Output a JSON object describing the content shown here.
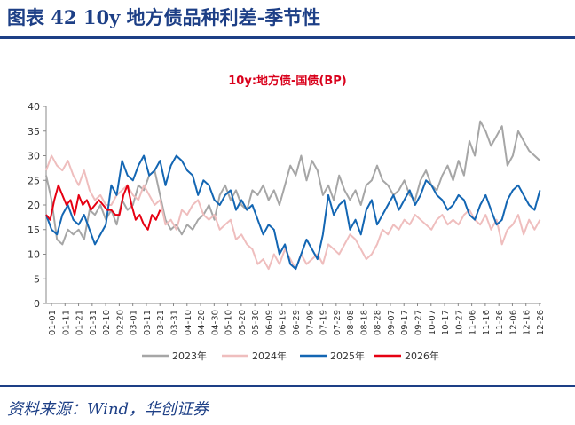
{
  "figure": {
    "title": "图表 42 10y 地方债品种利差-季节性",
    "source": "资料来源：Wind，华创证券"
  },
  "chart_data": {
    "type": "line",
    "title": "10y:地方债-国债(BP)",
    "ylim": [
      0,
      40
    ],
    "yticks": [
      0,
      5,
      10,
      15,
      20,
      25,
      30,
      35,
      40
    ],
    "x_tick_labels": [
      "01-01",
      "01-11",
      "01-21",
      "01-31",
      "02-10",
      "02-20",
      "03-01",
      "03-11",
      "03-21",
      "03-31",
      "04-10",
      "04-20",
      "04-30",
      "05-10",
      "05-20",
      "05-30",
      "06-09",
      "06-19",
      "06-29",
      "07-09",
      "07-19",
      "07-29",
      "08-08",
      "08-18",
      "08-28",
      "09-07",
      "09-17",
      "09-27",
      "10-07",
      "10-17",
      "10-27",
      "11-06",
      "11-16",
      "11-26",
      "12-06",
      "12-16",
      "12-26"
    ],
    "grid": false,
    "legend_position": "bottom",
    "series": [
      {
        "name": "2023年",
        "color": "#a6a6a6",
        "x": [
          0,
          4,
          8,
          12,
          16,
          20,
          24,
          28,
          32,
          36,
          40,
          44,
          48,
          52,
          56,
          60,
          64,
          68,
          72,
          76,
          80,
          84,
          88,
          92,
          96,
          100,
          104,
          108,
          112,
          116,
          120,
          124,
          128,
          132,
          136,
          140,
          144,
          148,
          152,
          156,
          160,
          164,
          168,
          172,
          176,
          180,
          184,
          188,
          192,
          196,
          200,
          204,
          208,
          212,
          216,
          220,
          224,
          228,
          232,
          236,
          240,
          244,
          248,
          252,
          256,
          260,
          264,
          268,
          272,
          276,
          280,
          284,
          288,
          292,
          296,
          300,
          304,
          308,
          312,
          316,
          320,
          324,
          328,
          332,
          336,
          340,
          344,
          348,
          352,
          356,
          360,
          364
        ],
        "values": [
          26,
          21,
          13,
          12,
          15,
          14,
          15,
          13,
          19,
          18,
          20,
          17,
          19,
          16,
          21,
          19,
          20,
          24,
          23,
          26,
          27,
          22,
          17,
          15,
          16,
          14,
          16,
          15,
          17,
          18,
          20,
          17,
          22,
          24,
          21,
          23,
          20,
          19,
          23,
          22,
          24,
          21,
          23,
          20,
          24,
          28,
          26,
          30,
          25,
          29,
          27,
          22,
          24,
          21,
          26,
          23,
          21,
          23,
          20,
          24,
          25,
          28,
          25,
          24,
          22,
          23,
          25,
          22,
          21,
          25,
          27,
          24,
          23,
          26,
          28,
          25,
          29,
          26,
          33,
          30,
          37,
          35,
          32,
          34,
          36,
          28,
          30,
          35,
          33,
          31,
          30,
          29
        ]
      },
      {
        "name": "2024年",
        "color": "#efbebe",
        "x": [
          0,
          4,
          8,
          12,
          16,
          20,
          24,
          28,
          32,
          36,
          40,
          44,
          48,
          52,
          56,
          60,
          64,
          68,
          72,
          76,
          80,
          84,
          88,
          92,
          96,
          100,
          104,
          108,
          112,
          116,
          120,
          124,
          128,
          132,
          136,
          140,
          144,
          148,
          152,
          156,
          160,
          164,
          168,
          172,
          176,
          180,
          184,
          188,
          192,
          196,
          200,
          204,
          208,
          212,
          216,
          220,
          224,
          228,
          232,
          236,
          240,
          244,
          248,
          252,
          256,
          260,
          264,
          268,
          272,
          276,
          280,
          284,
          288,
          292,
          296,
          300,
          304,
          308,
          312,
          316,
          320,
          324,
          328,
          332,
          336,
          340,
          344,
          348,
          352,
          356,
          360,
          364
        ],
        "values": [
          27,
          30,
          28,
          27,
          29,
          26,
          24,
          27,
          23,
          21,
          22,
          20,
          20,
          22,
          23,
          24,
          22,
          21,
          24,
          22,
          20,
          21,
          16,
          17,
          15,
          19,
          18,
          20,
          21,
          18,
          17,
          18,
          15,
          16,
          17,
          13,
          14,
          12,
          11,
          8,
          9,
          7,
          10,
          8,
          11,
          9,
          7,
          10,
          8,
          9,
          10,
          8,
          12,
          11,
          10,
          12,
          14,
          13,
          11,
          9,
          10,
          12,
          15,
          14,
          16,
          15,
          17,
          16,
          18,
          17,
          16,
          15,
          17,
          18,
          16,
          17,
          16,
          18,
          19,
          17,
          16,
          18,
          15,
          17,
          12,
          15,
          16,
          18,
          14,
          17,
          15,
          17
        ]
      },
      {
        "name": "2025年",
        "color": "#1366b3",
        "x": [
          0,
          4,
          8,
          12,
          16,
          20,
          24,
          28,
          32,
          36,
          40,
          44,
          48,
          52,
          56,
          60,
          64,
          68,
          72,
          76,
          80,
          84,
          88,
          92,
          96,
          100,
          104,
          108,
          112,
          116,
          120,
          124,
          128,
          132,
          136,
          140,
          144,
          148,
          152,
          156,
          160,
          164,
          168,
          172,
          176,
          180,
          184,
          188,
          192,
          196,
          200,
          204,
          208,
          212,
          216,
          220,
          224,
          228,
          232,
          236,
          240,
          244,
          248,
          252,
          256,
          260,
          264,
          268,
          272,
          276,
          280,
          284,
          288,
          292,
          296,
          300,
          304,
          308,
          312,
          316,
          320,
          324,
          328,
          332,
          336,
          340,
          344,
          348,
          352,
          356,
          360,
          364
        ],
        "values": [
          18,
          15,
          14,
          18,
          20,
          17,
          16,
          18,
          15,
          12,
          14,
          16,
          24,
          22,
          29,
          26,
          25,
          28,
          30,
          26,
          27,
          29,
          24,
          28,
          30,
          29,
          27,
          26,
          22,
          25,
          24,
          21,
          20,
          22,
          23,
          19,
          21,
          19,
          20,
          17,
          14,
          16,
          15,
          10,
          12,
          8,
          7,
          10,
          13,
          11,
          9,
          14,
          22,
          18,
          20,
          21,
          15,
          17,
          14,
          19,
          21,
          16,
          18,
          20,
          22,
          19,
          21,
          23,
          20,
          22,
          25,
          24,
          22,
          21,
          19,
          20,
          22,
          21,
          18,
          17,
          20,
          22,
          19,
          16,
          17,
          21,
          23,
          24,
          22,
          20,
          19,
          23
        ]
      },
      {
        "name": "2026年",
        "color": "#e60012",
        "x": [
          0,
          3,
          6,
          9,
          12,
          15,
          18,
          21,
          24,
          27,
          30,
          33,
          36,
          39,
          42,
          45,
          48,
          51,
          54,
          57,
          60,
          63,
          66,
          69,
          72,
          75,
          78,
          81,
          84
        ],
        "values": [
          18,
          17,
          21,
          24,
          22,
          20,
          21,
          18,
          22,
          20,
          21,
          19,
          20,
          21,
          20,
          19,
          19,
          18,
          18,
          22,
          24,
          20,
          17,
          18,
          16,
          15,
          18,
          17,
          19
        ]
      }
    ]
  }
}
